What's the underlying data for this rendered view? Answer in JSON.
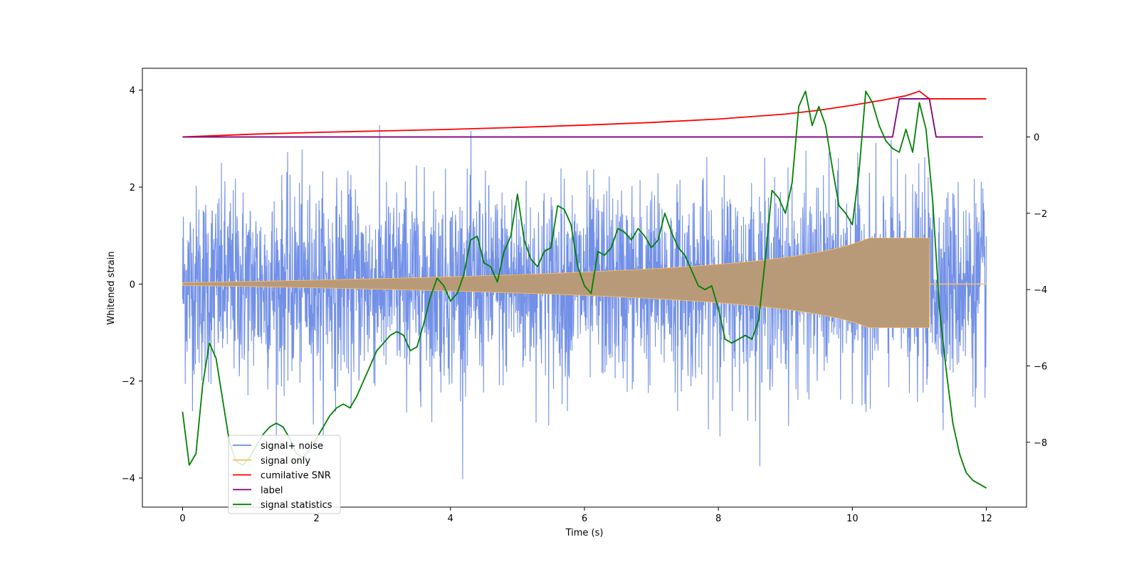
{
  "chart_data": {
    "type": "line",
    "xlabel": "Time (s)",
    "ylabel_left": "Whitened strain",
    "ylabel_right": "",
    "xlim": [
      -0.6,
      12.6
    ],
    "ylim_left": [
      -4.6,
      4.45
    ],
    "ylim_right": [
      -9.7,
      1.8
    ],
    "x_ticks": [
      0,
      2,
      4,
      6,
      8,
      10,
      12
    ],
    "x_tick_labels": [
      "0",
      "2",
      "4",
      "6",
      "8",
      "10",
      "12"
    ],
    "y_left_ticks": [
      -4,
      -2,
      0,
      2,
      4
    ],
    "y_left_tick_labels": [
      "−4",
      "−2",
      "0",
      "2",
      "4"
    ],
    "y_right_ticks": [
      -8,
      -6,
      -4,
      -2,
      0
    ],
    "y_right_tick_labels": [
      "−8",
      "−6",
      "−4",
      "−2",
      "0"
    ],
    "grid": false,
    "legend_position": "lower-left",
    "series": [
      {
        "name": "signal+ noise",
        "axis": "left",
        "color": "#6a8ae6",
        "style": "noise",
        "t_start": 0,
        "t_end": 12,
        "samples": 3000,
        "sigma": 1.0,
        "clip": 4.1
      },
      {
        "name": "signal only",
        "axis": "left",
        "color": "#ffc05a",
        "style": "chirp",
        "t_start": 0,
        "t_merge": 11.15,
        "t_end": 12,
        "amp_start": 0.03,
        "amp_peak": 1.0
      },
      {
        "name": "cumilative SNR",
        "axis": "right",
        "color": "#ff0000",
        "x": [
          0,
          1,
          2,
          3,
          4,
          5,
          6,
          7,
          8,
          9,
          9.5,
          10,
          10.5,
          10.8,
          11.0,
          11.15,
          11.2,
          12
        ],
        "y": [
          0,
          0.07,
          0.12,
          0.16,
          0.2,
          0.25,
          0.31,
          0.38,
          0.47,
          0.6,
          0.7,
          0.83,
          0.98,
          1.08,
          1.2,
          1.0,
          1.0,
          1.0
        ]
      },
      {
        "name": "label",
        "axis": "right",
        "color": "#800080",
        "x": [
          0,
          10.6,
          10.7,
          11.15,
          11.25,
          11.95
        ],
        "y": [
          0,
          0,
          1.0,
          1.0,
          0,
          0
        ]
      },
      {
        "name": "signal statistics",
        "axis": "right",
        "color": "#008000",
        "x": [
          0,
          0.1,
          0.2,
          0.3,
          0.4,
          0.5,
          0.6,
          0.7,
          0.8,
          0.9,
          1.0,
          1.1,
          1.2,
          1.3,
          1.4,
          1.5,
          1.6,
          1.7,
          1.8,
          1.9,
          2.0,
          2.1,
          2.2,
          2.3,
          2.4,
          2.5,
          2.6,
          2.7,
          2.8,
          2.9,
          3.0,
          3.1,
          3.2,
          3.3,
          3.4,
          3.5,
          3.6,
          3.7,
          3.8,
          3.9,
          4.0,
          4.1,
          4.2,
          4.3,
          4.4,
          4.5,
          4.6,
          4.7,
          4.8,
          4.9,
          5.0,
          5.1,
          5.2,
          5.3,
          5.4,
          5.5,
          5.6,
          5.7,
          5.8,
          5.9,
          6.0,
          6.1,
          6.2,
          6.3,
          6.4,
          6.5,
          6.6,
          6.7,
          6.8,
          6.9,
          7.0,
          7.1,
          7.2,
          7.3,
          7.4,
          7.5,
          7.6,
          7.7,
          7.8,
          7.9,
          8.0,
          8.1,
          8.2,
          8.3,
          8.4,
          8.5,
          8.6,
          8.7,
          8.8,
          8.9,
          9.0,
          9.1,
          9.2,
          9.3,
          9.4,
          9.5,
          9.6,
          9.7,
          9.8,
          9.9,
          10.0,
          10.1,
          10.2,
          10.3,
          10.4,
          10.5,
          10.6,
          10.7,
          10.8,
          10.9,
          11.0,
          11.1,
          11.2,
          11.3,
          11.4,
          11.5,
          11.6,
          11.7,
          11.8,
          11.9,
          12.0
        ],
        "y": [
          -7.2,
          -8.6,
          -8.3,
          -6.5,
          -5.4,
          -5.8,
          -6.9,
          -8.0,
          -8.5,
          -8.6,
          -8.4,
          -8.1,
          -7.8,
          -7.6,
          -7.5,
          -7.6,
          -7.9,
          -8.3,
          -8.4,
          -8.2,
          -7.9,
          -7.6,
          -7.3,
          -7.1,
          -7.0,
          -7.1,
          -6.8,
          -6.4,
          -6.0,
          -5.6,
          -5.4,
          -5.2,
          -5.1,
          -5.2,
          -5.6,
          -5.5,
          -4.9,
          -4.2,
          -3.7,
          -3.9,
          -4.3,
          -4.1,
          -3.6,
          -2.7,
          -2.6,
          -3.3,
          -3.4,
          -3.8,
          -3.0,
          -2.6,
          -1.5,
          -2.7,
          -3.2,
          -3.4,
          -3.0,
          -2.9,
          -1.8,
          -1.9,
          -2.3,
          -3.4,
          -3.9,
          -4.1,
          -3.0,
          -3.1,
          -2.9,
          -2.4,
          -2.5,
          -2.7,
          -2.4,
          -2.6,
          -2.9,
          -2.7,
          -2.0,
          -2.5,
          -2.9,
          -3.1,
          -3.5,
          -3.9,
          -4.0,
          -3.9,
          -4.5,
          -5.3,
          -5.4,
          -5.3,
          -5.2,
          -5.3,
          -4.8,
          -3.2,
          -1.4,
          -1.6,
          -2.0,
          -1.2,
          0.8,
          1.2,
          0.3,
          0.8,
          0.3,
          -0.8,
          -1.8,
          -2.0,
          -2.3,
          -0.9,
          1.2,
          0.9,
          0.3,
          -0.1,
          -0.3,
          -0.4,
          0.2,
          -0.4,
          0.9,
          0.2,
          -1.7,
          -4.5,
          -6.1,
          -7.5,
          -8.3,
          -8.8,
          -9.0,
          -9.1,
          -9.2
        ]
      }
    ]
  }
}
